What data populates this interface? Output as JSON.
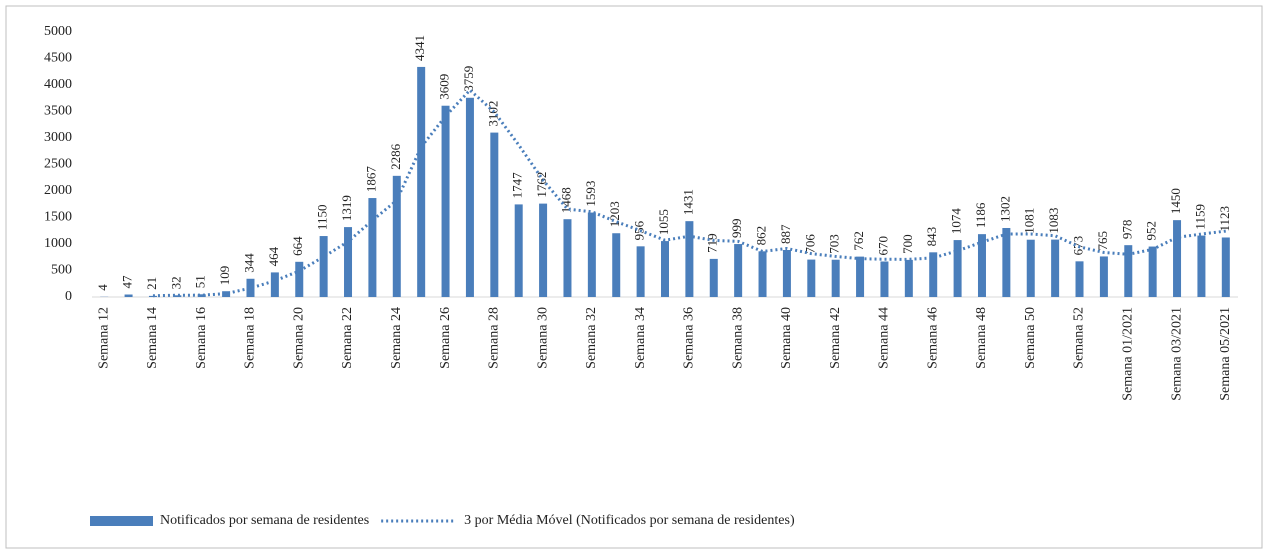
{
  "chart_data": {
    "type": "bar",
    "categories": [
      "Semana 12",
      null,
      "Semana 14",
      null,
      "Semana 16",
      null,
      "Semana 18",
      null,
      "Semana 20",
      null,
      "Semana 22",
      null,
      "Semana 24",
      null,
      "Semana 26",
      null,
      "Semana 28",
      null,
      "Semana 30",
      null,
      "Semana 32",
      null,
      "Semana 34",
      null,
      "Semana 36",
      null,
      "Semana 38",
      null,
      "Semana 40",
      null,
      "Semana 42",
      null,
      "Semana 44",
      null,
      "Semana 46",
      null,
      "Semana 48",
      null,
      "Semana 50",
      null,
      "Semana 52",
      null,
      "Semana 01/2021",
      null,
      "Semana 03/2021",
      null,
      "Semana 05/2021"
    ],
    "series": [
      {
        "name": "Notificados por semana de residentes",
        "color": "#4a7ebb",
        "type": "bar",
        "values": [
          4,
          47,
          21,
          32,
          51,
          109,
          344,
          464,
          664,
          1150,
          1319,
          1867,
          2286,
          4341,
          3609,
          3759,
          3102,
          1747,
          1762,
          1468,
          1593,
          1203,
          956,
          1055,
          1431,
          719,
          999,
          862,
          887,
          706,
          703,
          762,
          670,
          700,
          843,
          1074,
          1186,
          1302,
          1081,
          1083,
          673,
          765,
          978,
          952,
          1450,
          1159,
          1123
        ]
      },
      {
        "name": "3 por Média Móvel (Notificados por semana de residentes)",
        "color": "#4a7ebb",
        "type": "line",
        "values": [
          null,
          null,
          24,
          33.3,
          34.7,
          64,
          168,
          305.7,
          490.7,
          759.3,
          1044.3,
          1445.3,
          1824,
          2831.3,
          3412,
          3903,
          3490,
          2869.3,
          2203.7,
          1659,
          1607.7,
          1421.3,
          1250.7,
          1071.3,
          1147.3,
          1068.3,
          1049.7,
          860,
          916,
          818.3,
          765.3,
          723.7,
          711.7,
          710.7,
          737.7,
          872.3,
          1034.3,
          1187.3,
          1189.7,
          1155.3,
          945.7,
          840.3,
          805.3,
          898.3,
          1126.7,
          1187,
          1244
        ]
      }
    ],
    "ylim": [
      0,
      5000
    ],
    "yticks": [
      0,
      500,
      1000,
      1500,
      2000,
      2500,
      3000,
      3500,
      4000,
      4500,
      5000
    ],
    "legend": "bottom"
  }
}
